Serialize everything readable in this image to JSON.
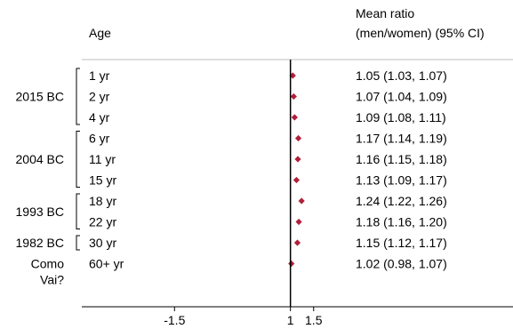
{
  "headers": {
    "age": "Age",
    "ratio_line1": "Mean ratio",
    "ratio_line2": "(men/women) (95% CI)"
  },
  "colors": {
    "marker": "#b0203a",
    "axis": "#000000",
    "divider": "#bdbdbd"
  },
  "chart_data": {
    "type": "forest",
    "title": "",
    "xlabel": "",
    "ylabel": "",
    "xlim": [
      -3.5,
      5.8
    ],
    "reference_line": 1,
    "x_ticks": [
      {
        "value": -1.5,
        "label": "-1.5"
      },
      {
        "value": 1,
        "label": "1"
      },
      {
        "value": 1.5,
        "label": "1.5"
      }
    ],
    "groups": [
      {
        "label": "2015 BC",
        "first_row": 0,
        "last_row": 2
      },
      {
        "label": "2004 BC",
        "first_row": 3,
        "last_row": 5
      },
      {
        "label": "1993 BC",
        "first_row": 6,
        "last_row": 7
      },
      {
        "label": "1982 BC",
        "first_row": 8,
        "last_row": 8
      },
      {
        "label": "Como Vai?",
        "first_row": 9,
        "last_row": 9
      }
    ],
    "rows": [
      {
        "age": "1 yr",
        "mean": 1.05,
        "lower": 1.03,
        "upper": 1.07,
        "ci_text": "1.05 (1.03, 1.07)"
      },
      {
        "age": "2 yr",
        "mean": 1.07,
        "lower": 1.04,
        "upper": 1.09,
        "ci_text": "1.07 (1.04, 1.09)"
      },
      {
        "age": "4 yr",
        "mean": 1.09,
        "lower": 1.08,
        "upper": 1.11,
        "ci_text": "1.09 (1.08, 1.11)"
      },
      {
        "age": "6 yr",
        "mean": 1.17,
        "lower": 1.14,
        "upper": 1.19,
        "ci_text": "1.17 (1.14, 1.19)"
      },
      {
        "age": "11 yr",
        "mean": 1.16,
        "lower": 1.15,
        "upper": 1.18,
        "ci_text": "1.16 (1.15, 1.18)"
      },
      {
        "age": "15 yr",
        "mean": 1.13,
        "lower": 1.09,
        "upper": 1.17,
        "ci_text": "1.13 (1.09, 1.17)"
      },
      {
        "age": "18 yr",
        "mean": 1.24,
        "lower": 1.22,
        "upper": 1.26,
        "ci_text": "1.24 (1.22, 1.26)"
      },
      {
        "age": "22 yr",
        "mean": 1.18,
        "lower": 1.16,
        "upper": 1.2,
        "ci_text": "1.18 (1.16, 1.20)"
      },
      {
        "age": "30 yr",
        "mean": 1.15,
        "lower": 1.12,
        "upper": 1.17,
        "ci_text": "1.15 (1.12, 1.17)"
      },
      {
        "age": "60+ yr",
        "mean": 1.02,
        "lower": 0.98,
        "upper": 1.07,
        "ci_text": "1.02 (0.98, 1.07)"
      }
    ]
  }
}
